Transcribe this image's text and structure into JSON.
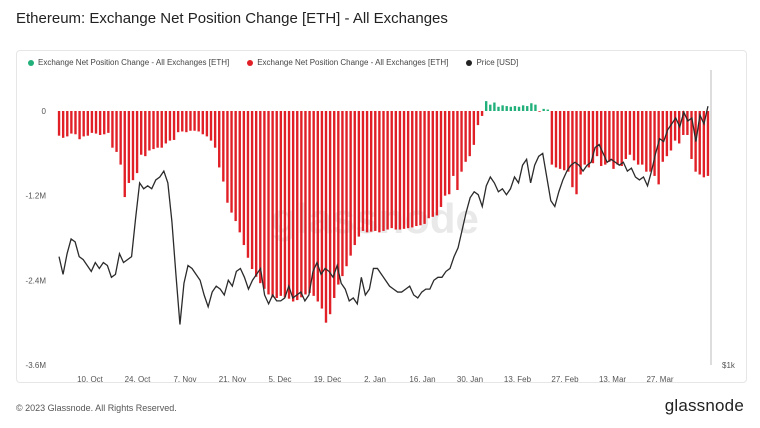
{
  "title": "Ethereum: Exchange Net Position Change [ETH] - All Exchanges",
  "footer": "© 2023 Glassnode. All Rights Reserved.",
  "brand": "glassnode",
  "watermark": "glassnode",
  "colors": {
    "positive": "#22b07a",
    "negative": "#e01f26",
    "price": "#333333"
  },
  "chart_data": {
    "type": "bar",
    "legend": [
      {
        "name": "Exchange Net Position Change - All Exchanges [ETH]",
        "color": "#22b07a"
      },
      {
        "name": "Exchange Net Position Change - All Exchanges [ETH]",
        "color": "#e01f26"
      },
      {
        "name": "Price [USD]",
        "color": "#222222"
      }
    ],
    "legend_position": "top-left",
    "x_ticks": [
      "10. Oct",
      "24. Oct",
      "7. Nov",
      "21. Nov",
      "5. Dec",
      "19. Dec",
      "2. Jan",
      "16. Jan",
      "30. Jan",
      "13. Feb",
      "27. Feb",
      "13. Mar",
      "27. Mar"
    ],
    "y_ticks": [
      "0",
      "-1.2M",
      "-2.4M",
      "-3.6M"
    ],
    "ylim": [
      -3600000,
      0
    ],
    "y2_ticks": [
      "$1k"
    ],
    "grid": false,
    "net_position_change": [
      -350000,
      -380000,
      -360000,
      -320000,
      -330000,
      -400000,
      -360000,
      -350000,
      -310000,
      -320000,
      -340000,
      -330000,
      -310000,
      -520000,
      -580000,
      -760000,
      -1220000,
      -1020000,
      -980000,
      -880000,
      -620000,
      -640000,
      -560000,
      -540000,
      -520000,
      -520000,
      -460000,
      -420000,
      -410000,
      -300000,
      -290000,
      -300000,
      -280000,
      -280000,
      -290000,
      -330000,
      -360000,
      -420000,
      -520000,
      -800000,
      -1000000,
      -1300000,
      -1440000,
      -1560000,
      -1720000,
      -1900000,
      -2080000,
      -2240000,
      -2350000,
      -2440000,
      -2520000,
      -2600000,
      -2640000,
      -2650000,
      -2620000,
      -2640000,
      -2660000,
      -2700000,
      -2680000,
      -2640000,
      -2600000,
      -2580000,
      -2620000,
      -2700000,
      -2800000,
      -3000000,
      -2880000,
      -2650000,
      -2460000,
      -2340000,
      -2200000,
      -2050000,
      -1900000,
      -1780000,
      -1700000,
      -1720000,
      -1710000,
      -1700000,
      -1720000,
      -1700000,
      -1680000,
      -1660000,
      -1680000,
      -1680000,
      -1670000,
      -1660000,
      -1650000,
      -1630000,
      -1620000,
      -1600000,
      -1520000,
      -1500000,
      -1480000,
      -1360000,
      -1200000,
      -1180000,
      -920000,
      -1120000,
      -860000,
      -720000,
      -640000,
      -480000,
      -200000,
      -70000,
      140000,
      90000,
      120000,
      60000,
      80000,
      70000,
      60000,
      70000,
      60000,
      80000,
      70000,
      110000,
      90000,
      -10000,
      30000,
      20000,
      -760000,
      -800000,
      -820000,
      -840000,
      -860000,
      -1080000,
      -1180000,
      -900000,
      -760000,
      -800000,
      -740000,
      -640000,
      -780000,
      -760000,
      -720000,
      -820000,
      -760000,
      -780000,
      -680000,
      -620000,
      -700000,
      -760000,
      -760000,
      -860000,
      -860000,
      -920000,
      -1040000,
      -720000,
      -640000,
      -560000,
      -420000,
      -460000,
      -340000,
      -340000,
      -680000,
      -860000,
      -900000,
      -940000,
      -920000
    ],
    "price_usd": [
      1330,
      1270,
      1340,
      1390,
      1380,
      1330,
      1320,
      1300,
      1280,
      1310,
      1290,
      1310,
      1300,
      1260,
      1270,
      1340,
      1310,
      1320,
      1330,
      1460,
      1580,
      1560,
      1570,
      1560,
      1590,
      1600,
      1620,
      1580,
      1450,
      1270,
      1100,
      1240,
      1300,
      1290,
      1270,
      1250,
      1200,
      1160,
      1210,
      1230,
      1220,
      1200,
      1250,
      1230,
      1280,
      1290,
      1260,
      1220,
      1250,
      1270,
      1290,
      1200,
      1170,
      1200,
      1180,
      1180,
      1190,
      1230,
      1190,
      1200,
      1210,
      1180,
      1200,
      1280,
      1310,
      1270,
      1290,
      1280,
      1260,
      1300,
      1240,
      1220,
      1180,
      1190,
      1170,
      1260,
      1200,
      1220,
      1290,
      1290,
      1270,
      1250,
      1230,
      1220,
      1210,
      1210,
      1220,
      1230,
      1200,
      1190,
      1210,
      1220,
      1220,
      1250,
      1260,
      1260,
      1280,
      1290,
      1330,
      1360,
      1420,
      1480,
      1530,
      1550,
      1540,
      1500,
      1570,
      1600,
      1580,
      1550,
      1560,
      1540,
      1560,
      1600,
      1580,
      1640,
      1660,
      1580,
      1640,
      1670,
      1680,
      1600,
      1520,
      1500,
      1550,
      1590,
      1620,
      1640,
      1650,
      1640,
      1620,
      1640,
      1650,
      1700,
      1710,
      1680,
      1650,
      1660,
      1650,
      1640,
      1650,
      1620,
      1630,
      1600,
      1590,
      1600,
      1570,
      1620,
      1680,
      1730,
      1720,
      1760,
      1780,
      1800,
      1770,
      1820,
      1790,
      1800,
      1720,
      1810,
      1780,
      1840
    ]
  }
}
